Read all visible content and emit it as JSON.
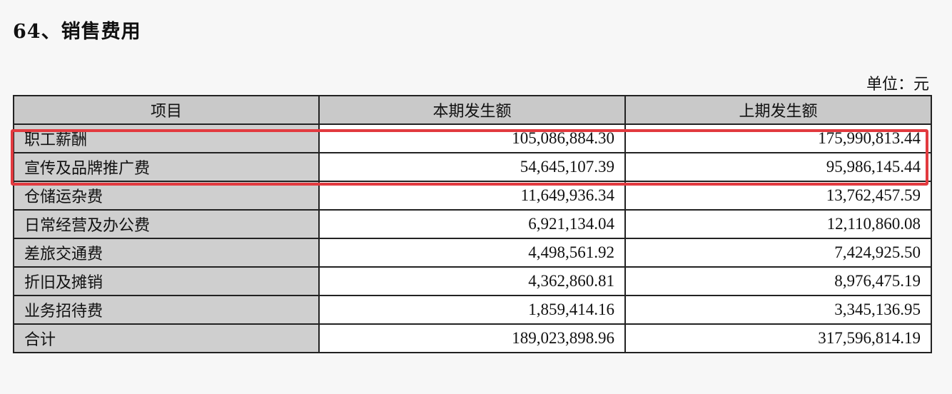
{
  "title": "64、销售费用",
  "unit_note": "单位：元",
  "table": {
    "headers": [
      "项目",
      "本期发生额",
      "上期发生额"
    ],
    "rows": [
      {
        "item": "职工薪酬",
        "current": "105,086,884.30",
        "previous": "175,990,813.44"
      },
      {
        "item": "宣传及品牌推广费",
        "current": "54,645,107.39",
        "previous": "95,986,145.44"
      },
      {
        "item": "仓储运杂费",
        "current": "11,649,936.34",
        "previous": "13,762,457.59"
      },
      {
        "item": "日常经营及办公费",
        "current": "6,921,134.04",
        "previous": "12,110,860.08"
      },
      {
        "item": "差旅交通费",
        "current": "4,498,561.92",
        "previous": "7,424,925.50"
      },
      {
        "item": "折旧及摊销",
        "current": "4,362,860.81",
        "previous": "8,976,475.19"
      },
      {
        "item": "业务招待费",
        "current": "1,859,414.16",
        "previous": "3,345,136.95"
      },
      {
        "item": "合计",
        "current": "189,023,898.96",
        "previous": "317,596,814.19"
      }
    ]
  },
  "highlight": {
    "color": "#e23a3f",
    "rows": [
      0,
      1
    ]
  }
}
